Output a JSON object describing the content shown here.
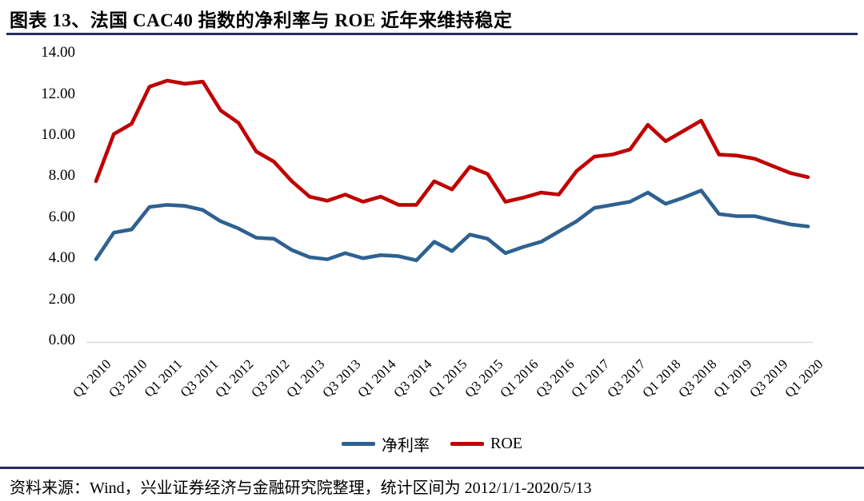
{
  "header": {
    "title": "图表 13、法国 CAC40 指数的净利率与 ROE 近年来维持稳定"
  },
  "footer": {
    "source_note": "资料来源：Wind，兴业证券经济与金融研究院整理，统计区间为 2012/1/1-2020/5/13"
  },
  "colors": {
    "rule_navy": "#262A66",
    "axis_line": "#D9D9D9",
    "series_net_margin": "#2E618F",
    "series_roe": "#C00000"
  },
  "chart_data": {
    "type": "line",
    "title": "",
    "xlabel": "",
    "ylabel": "",
    "ylim": [
      0,
      14
    ],
    "y_tick_step": 2,
    "y_tick_labels": [
      "0.00",
      "2.00",
      "4.00",
      "6.00",
      "8.00",
      "10.00",
      "12.00",
      "14.00"
    ],
    "x_label_every": 2,
    "grid": false,
    "legend_position": "bottom",
    "categories": [
      "Q1 2010",
      "Q2 2010",
      "Q3 2010",
      "Q4 2010",
      "Q1 2011",
      "Q2 2011",
      "Q3 2011",
      "Q4 2011",
      "Q1 2012",
      "Q2 2012",
      "Q3 2012",
      "Q4 2012",
      "Q1 2013",
      "Q2 2013",
      "Q3 2013",
      "Q4 2013",
      "Q1 2014",
      "Q2 2014",
      "Q3 2014",
      "Q4 2014",
      "Q1 2015",
      "Q2 2015",
      "Q3 2015",
      "Q4 2015",
      "Q1 2016",
      "Q2 2016",
      "Q3 2016",
      "Q4 2016",
      "Q1 2017",
      "Q2 2017",
      "Q3 2017",
      "Q4 2017",
      "Q1 2018",
      "Q2 2018",
      "Q3 2018",
      "Q4 2018",
      "Q1 2019",
      "Q2 2019",
      "Q3 2019",
      "Q4 2019",
      "Q1 2020"
    ],
    "series": [
      {
        "name": "净利率",
        "color": "#2E618F",
        "values": [
          3.95,
          5.25,
          5.4,
          6.5,
          6.6,
          6.55,
          6.35,
          5.8,
          5.45,
          5.0,
          4.95,
          4.4,
          4.05,
          3.95,
          4.25,
          4.0,
          4.15,
          4.1,
          3.9,
          4.8,
          4.35,
          5.15,
          4.95,
          4.25,
          4.55,
          4.8,
          5.3,
          5.8,
          6.45,
          6.6,
          6.75,
          7.2,
          6.65,
          6.95,
          7.3,
          6.15,
          6.05,
          6.05,
          5.85,
          5.65,
          5.55
        ]
      },
      {
        "name": "ROE",
        "color": "#C00000",
        "values": [
          7.75,
          10.05,
          10.55,
          12.35,
          12.65,
          12.5,
          12.6,
          11.2,
          10.6,
          9.2,
          8.7,
          7.75,
          7.0,
          6.8,
          7.1,
          6.75,
          7.0,
          6.6,
          6.6,
          7.75,
          7.35,
          8.45,
          8.1,
          6.75,
          6.95,
          7.2,
          7.1,
          8.25,
          8.95,
          9.05,
          9.3,
          10.5,
          9.7,
          10.2,
          10.7,
          9.05,
          9.0,
          8.85,
          8.5,
          8.15,
          7.95
        ]
      }
    ]
  }
}
